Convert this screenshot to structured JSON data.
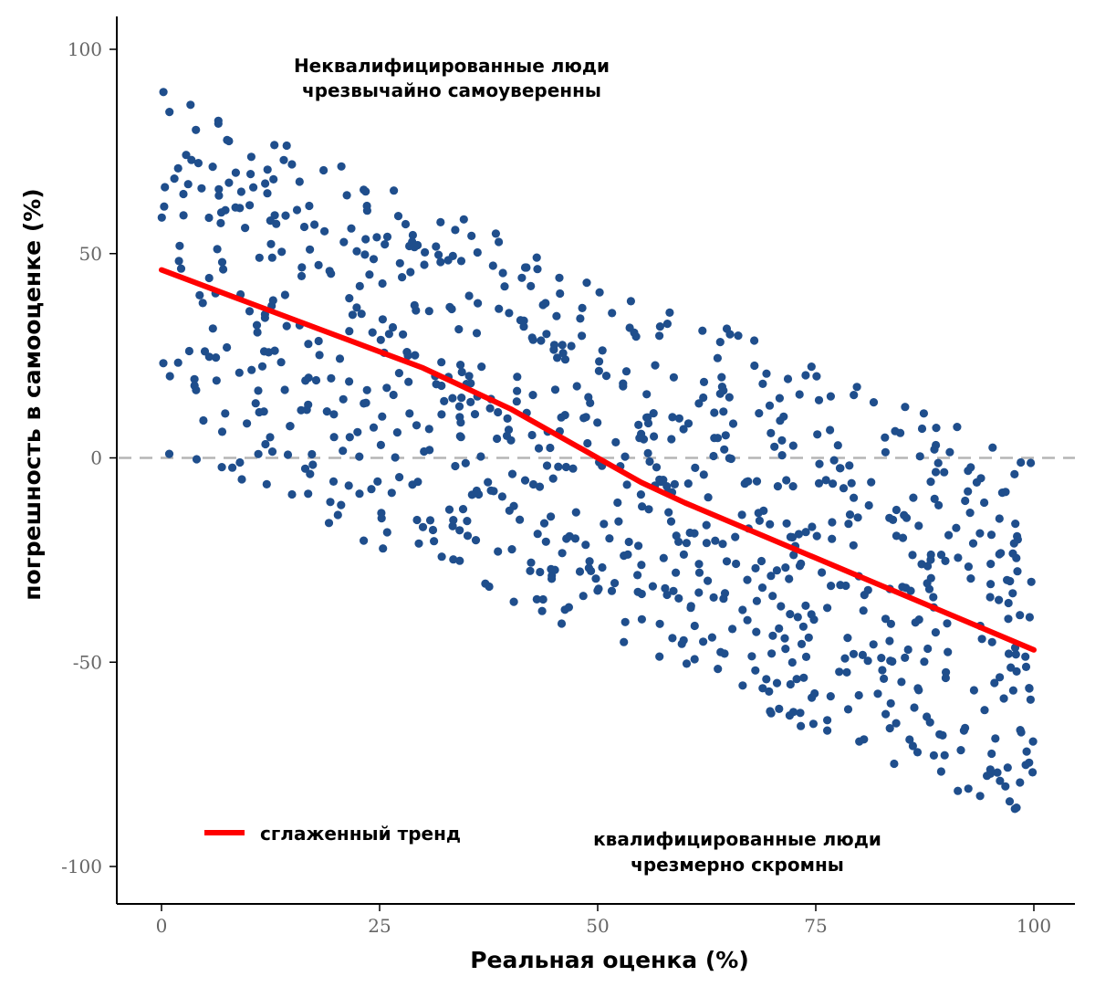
{
  "chart_data": {
    "type": "scatter",
    "xlabel": "Реальная оценка (%)",
    "ylabel": "погрешность в самооценке (%)",
    "xlim": [
      -2,
      102
    ],
    "ylim": [
      -107,
      103
    ],
    "x_ticks": [
      0,
      25,
      50,
      75,
      100
    ],
    "x_tick_labels": [
      "0",
      "25",
      "50",
      "75",
      "100"
    ],
    "y_ticks": [
      100,
      50,
      0,
      -50,
      -100
    ],
    "y_tick_labels": [
      "100",
      "50",
      "0",
      "-50",
      "-100"
    ],
    "grid": false,
    "zero_line": {
      "y": 0,
      "style": "dashed",
      "color": "#b5b5b5"
    },
    "points_color": "#1f4e8c",
    "trend": {
      "name": "сглаженный тренд",
      "color": "#ff0000",
      "x": [
        0,
        10,
        20,
        30,
        40,
        45,
        50,
        55,
        60,
        70,
        80,
        90,
        100
      ],
      "y": [
        46,
        38,
        30,
        22,
        12,
        6,
        0,
        -6,
        -11,
        -20,
        -29,
        -38,
        -47
      ]
    },
    "legend": {
      "position": "bottom-left",
      "entries": [
        "сглаженный тренд"
      ]
    },
    "annotations": [
      {
        "lines": [
          "Неквалифицированные люди",
          "чрезвычайно самоуверенны"
        ],
        "position": "top-center"
      },
      {
        "lines": [
          "квалифицированные люди",
          "чрезмерно скромны"
        ],
        "position": "bottom-right"
      }
    ],
    "point_generation": {
      "count": 880,
      "seed": 42,
      "x_range": [
        0,
        100
      ],
      "band_center_slope": -0.9,
      "band_center_intercept": 45,
      "band_half_width": 45
    }
  }
}
